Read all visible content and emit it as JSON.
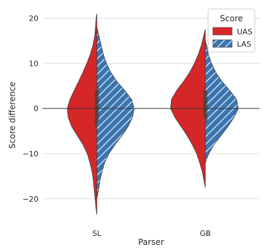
{
  "chart_data": {
    "type": "violin",
    "split": true,
    "xlabel": "Parser",
    "ylabel": "Score difference",
    "categories": [
      "SL",
      "GB"
    ],
    "ylim": [
      -25.5,
      22.5
    ],
    "yticks": [
      20,
      10,
      0,
      -10,
      -20
    ],
    "ytick_labels": [
      "20",
      "10",
      "0",
      "−10",
      "−20"
    ],
    "reference_line_y": 0,
    "grid": "horizontal",
    "legend": {
      "title": "Score",
      "position": "top-right",
      "entries": [
        "UAS",
        "LAS"
      ]
    },
    "series": [
      {
        "name": "UAS",
        "color": "#d62728",
        "hatch": "none",
        "side": "left",
        "distributions": [
          {
            "category": "SL",
            "median": 0,
            "quartiles": [
              -4,
              4
            ],
            "profile": [
              {
                "y": -23.5,
                "w": 0.0
              },
              {
                "y": -22,
                "w": 0.02
              },
              {
                "y": -20,
                "w": 0.04
              },
              {
                "y": -18,
                "w": 0.06
              },
              {
                "y": -16,
                "w": 0.08
              },
              {
                "y": -14,
                "w": 0.11
              },
              {
                "y": -12,
                "w": 0.16
              },
              {
                "y": -10,
                "w": 0.22
              },
              {
                "y": -8,
                "w": 0.32
              },
              {
                "y": -6,
                "w": 0.45
              },
              {
                "y": -4,
                "w": 0.58
              },
              {
                "y": -2,
                "w": 0.66
              },
              {
                "y": 0,
                "w": 0.68
              },
              {
                "y": 2,
                "w": 0.62
              },
              {
                "y": 4,
                "w": 0.52
              },
              {
                "y": 6,
                "w": 0.42
              },
              {
                "y": 8,
                "w": 0.32
              },
              {
                "y": 10,
                "w": 0.23
              },
              {
                "y": 12,
                "w": 0.15
              },
              {
                "y": 14,
                "w": 0.09
              },
              {
                "y": 16,
                "w": 0.05
              },
              {
                "y": 18,
                "w": 0.03
              },
              {
                "y": 20,
                "w": 0.015
              },
              {
                "y": 21,
                "w": 0.0
              }
            ]
          },
          {
            "category": "GB",
            "median": 1,
            "quartiles": [
              -2,
              4
            ],
            "profile": [
              {
                "y": -17.5,
                "w": 0.0
              },
              {
                "y": -16,
                "w": 0.03
              },
              {
                "y": -14,
                "w": 0.07
              },
              {
                "y": -12,
                "w": 0.13
              },
              {
                "y": -10,
                "w": 0.2
              },
              {
                "y": -8,
                "w": 0.3
              },
              {
                "y": -6,
                "w": 0.42
              },
              {
                "y": -4,
                "w": 0.56
              },
              {
                "y": -2,
                "w": 0.7
              },
              {
                "y": 0,
                "w": 0.8
              },
              {
                "y": 2,
                "w": 0.78
              },
              {
                "y": 4,
                "w": 0.66
              },
              {
                "y": 6,
                "w": 0.5
              },
              {
                "y": 8,
                "w": 0.36
              },
              {
                "y": 10,
                "w": 0.25
              },
              {
                "y": 12,
                "w": 0.16
              },
              {
                "y": 14,
                "w": 0.09
              },
              {
                "y": 16,
                "w": 0.04
              },
              {
                "y": 17.5,
                "w": 0.0
              }
            ]
          }
        ]
      },
      {
        "name": "LAS",
        "color": "#3a75b0",
        "hatch": "diagonal-white",
        "side": "right",
        "distributions": [
          {
            "category": "SL",
            "median": 1,
            "quartiles": [
              -3,
              5
            ],
            "profile": [
              {
                "y": -20,
                "w": 0.0
              },
              {
                "y": -18,
                "w": 0.04
              },
              {
                "y": -16,
                "w": 0.07
              },
              {
                "y": -14,
                "w": 0.12
              },
              {
                "y": -12,
                "w": 0.18
              },
              {
                "y": -10,
                "w": 0.28
              },
              {
                "y": -8,
                "w": 0.42
              },
              {
                "y": -6,
                "w": 0.58
              },
              {
                "y": -4,
                "w": 0.72
              },
              {
                "y": -2,
                "w": 0.82
              },
              {
                "y": 0,
                "w": 0.86
              },
              {
                "y": 2,
                "w": 0.8
              },
              {
                "y": 4,
                "w": 0.64
              },
              {
                "y": 6,
                "w": 0.46
              },
              {
                "y": 8,
                "w": 0.32
              },
              {
                "y": 10,
                "w": 0.22
              },
              {
                "y": 12,
                "w": 0.15
              },
              {
                "y": 14,
                "w": 0.1
              },
              {
                "y": 16,
                "w": 0.05
              },
              {
                "y": 18,
                "w": 0.0
              }
            ]
          },
          {
            "category": "GB",
            "median": 0,
            "quartiles": [
              -3,
              4
            ],
            "profile": [
              {
                "y": -12,
                "w": 0.0
              },
              {
                "y": -10,
                "w": 0.08
              },
              {
                "y": -8,
                "w": 0.2
              },
              {
                "y": -6,
                "w": 0.36
              },
              {
                "y": -4,
                "w": 0.52
              },
              {
                "y": -2,
                "w": 0.66
              },
              {
                "y": 0,
                "w": 0.76
              },
              {
                "y": 2,
                "w": 0.72
              },
              {
                "y": 4,
                "w": 0.56
              },
              {
                "y": 6,
                "w": 0.38
              },
              {
                "y": 8,
                "w": 0.24
              },
              {
                "y": 10,
                "w": 0.14
              },
              {
                "y": 12,
                "w": 0.07
              },
              {
                "y": 14,
                "w": 0.03
              },
              {
                "y": 15,
                "w": 0.0
              }
            ]
          }
        ]
      }
    ]
  }
}
